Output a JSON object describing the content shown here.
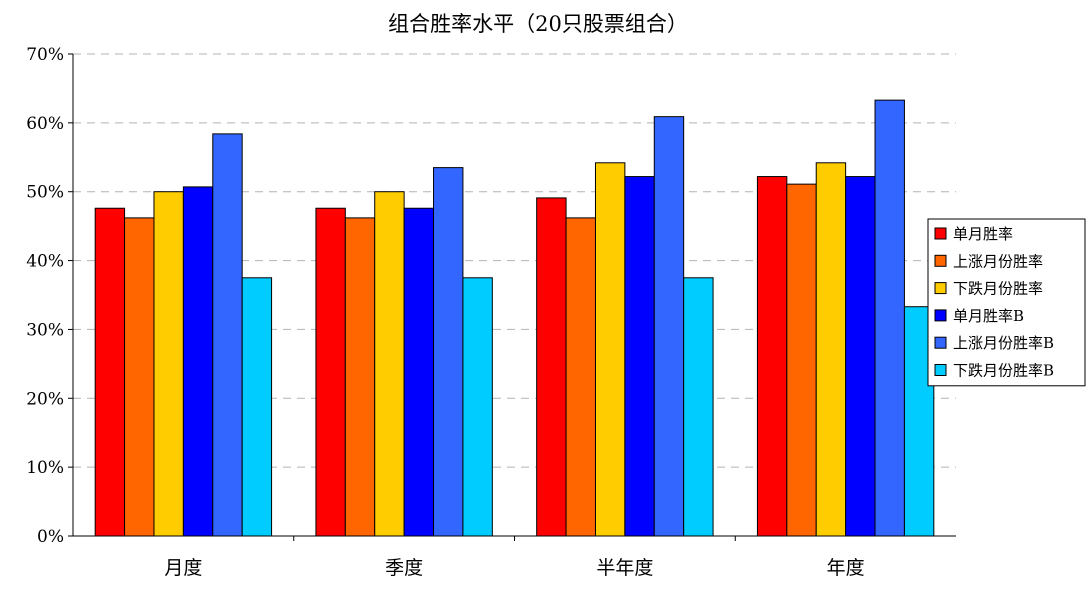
{
  "chart_data": {
    "type": "bar",
    "title": "组合胜率水平（20只股票组合）",
    "xlabel": "",
    "ylabel": "",
    "ylim": [
      0,
      70
    ],
    "yticks": [
      0,
      10,
      20,
      30,
      40,
      50,
      60,
      70
    ],
    "ytick_labels": [
      "0%",
      "10%",
      "20%",
      "30%",
      "40%",
      "50%",
      "60%",
      "70%"
    ],
    "grid": true,
    "legend_position": "right",
    "categories": [
      "月度",
      "季度",
      "半年度",
      "年度"
    ],
    "series": [
      {
        "name": "单月胜率",
        "color": "#ff0000",
        "values": [
          47.6,
          47.6,
          49.1,
          52.2
        ]
      },
      {
        "name": "上涨月份胜率",
        "color": "#ff6600",
        "values": [
          46.2,
          46.2,
          46.2,
          51.1
        ]
      },
      {
        "name": "下跌月份胜率",
        "color": "#ffcc00",
        "values": [
          50.0,
          50.0,
          54.2,
          54.2
        ]
      },
      {
        "name": "单月胜率B",
        "color": "#0000ff",
        "values": [
          50.7,
          47.6,
          52.2,
          52.2
        ]
      },
      {
        "name": "上涨月份胜率B",
        "color": "#3366ff",
        "values": [
          58.4,
          53.5,
          60.9,
          63.3
        ]
      },
      {
        "name": "下跌月份胜率B",
        "color": "#00ccff",
        "values": [
          37.5,
          37.5,
          37.5,
          33.3
        ]
      }
    ]
  }
}
